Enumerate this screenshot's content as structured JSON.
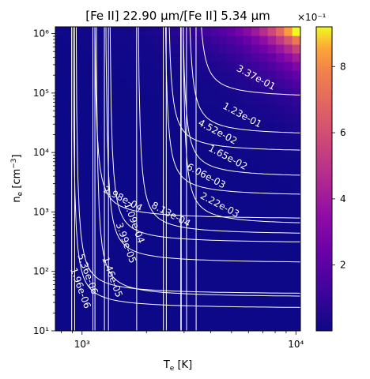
{
  "chart_data": {
    "type": "heatmap",
    "title": "[Fe II] 22.90 μm/[Fe II] 5.34 μm",
    "xlabel": "T_e [K]",
    "ylabel": "n_e [cm^-3]",
    "x_scale": "log",
    "y_scale": "log",
    "xlim": [
      750,
      10500
    ],
    "ylim": [
      10,
      1300000
    ],
    "x_tick_labels": [
      {
        "value": 1000,
        "label": "10³"
      },
      {
        "value": 10000,
        "label": "10⁴"
      }
    ],
    "y_tick_labels": [
      {
        "value": 10,
        "label": "10¹"
      },
      {
        "value": 100,
        "label": "10²"
      },
      {
        "value": 1000,
        "label": "10³"
      },
      {
        "value": 10000,
        "label": "10⁴"
      },
      {
        "value": 100000,
        "label": "10⁵"
      },
      {
        "value": 1000000,
        "label": "10⁶"
      }
    ],
    "colormap": "plasma",
    "colorbar": {
      "multiplier_label": "×10⁻¹",
      "range": [
        0.01,
        9.2
      ],
      "ticks": [
        2,
        4,
        6,
        8
      ]
    },
    "grid": false,
    "contours": [
      {
        "label": "1.96e-06",
        "label_at": [
          980,
          52
        ]
      },
      {
        "label": "5.36e-06",
        "label_at": [
          1060,
          90
        ]
      },
      {
        "label": "1.46e-05",
        "label_at": [
          1380,
          80
        ]
      },
      {
        "label": "3.99e-05",
        "label_at": [
          1600,
          300
        ]
      },
      {
        "label": "1.09e-04",
        "label_at": [
          1750,
          650
        ]
      },
      {
        "label": "2.98e-04",
        "label_at": [
          1550,
          1650
        ]
      },
      {
        "label": "8.13e-04",
        "label_at": [
          2600,
          900
        ]
      },
      {
        "label": "2.22e-03",
        "label_at": [
          4400,
          1300
        ]
      },
      {
        "label": "6.06e-03",
        "label_at": [
          3800,
          4000
        ]
      },
      {
        "label": "1.65e-02",
        "label_at": [
          4800,
          8200
        ]
      },
      {
        "label": "4.52e-02",
        "label_at": [
          4300,
          22000
        ]
      },
      {
        "label": "1.23e-01",
        "label_at": [
          5600,
          42000
        ]
      },
      {
        "label": "3.37e-01",
        "label_at": [
          6500,
          180000
        ]
      }
    ]
  }
}
